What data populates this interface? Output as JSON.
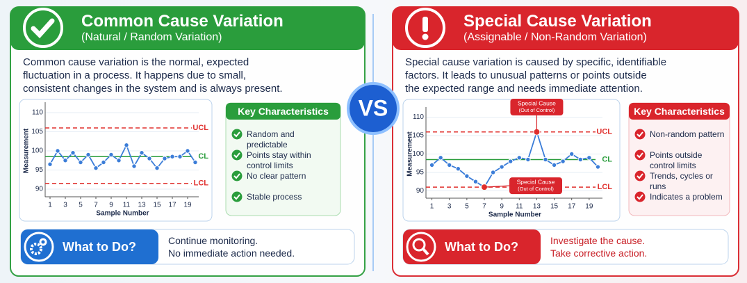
{
  "vs": "VS",
  "panels": [
    {
      "title": "Common Cause Variation",
      "subtitle": "(Natural / Random Variation)",
      "color": "#2a9d3c",
      "action_color": "#1f6fd1",
      "action_text_color": "#1c2a4a",
      "description": [
        "Common cause variation is the normal, expected",
        "fluctuation in a process. It happens due to small,",
        "consistent changes in the system and is always present."
      ],
      "chart": {
        "type": "line",
        "y_label": "Measurement",
        "x_label": "Sample Number",
        "line_color": "#3b7dd8",
        "x": [
          1,
          2,
          3,
          4,
          5,
          6,
          7,
          8,
          9,
          10,
          11,
          12,
          13,
          14,
          15,
          16,
          17,
          18,
          19,
          20
        ],
        "values": [
          96.5,
          100,
          97.5,
          99.5,
          97,
          99,
          95.5,
          97,
          99,
          97.5,
          101.5,
          96,
          99.5,
          98,
          95.5,
          98,
          98.5,
          98.5,
          100,
          97
        ],
        "point_colors": [
          "#3b7dd8",
          "#3b7dd8",
          "#3b7dd8",
          "#3b7dd8",
          "#3b7dd8",
          "#3b7dd8",
          "#3b7dd8",
          "#3b7dd8",
          "#3b7dd8",
          "#3b7dd8",
          "#3b7dd8",
          "#3b7dd8",
          "#3b7dd8",
          "#3b7dd8",
          "#3b7dd8",
          "#3b7dd8",
          "#3b7dd8",
          "#3b7dd8",
          "#3b7dd8",
          "#3b7dd8"
        ],
        "xlim": [
          0,
          21
        ],
        "xticks": [
          1,
          3,
          5,
          7,
          9,
          11,
          13,
          15,
          17,
          19
        ],
        "ylim": [
          88,
          112
        ],
        "yticks": [
          90,
          95,
          100,
          105,
          110
        ],
        "grid": true,
        "limits": [
          {
            "label": "UCL",
            "value": 106,
            "color": "#e0302e"
          },
          {
            "label": "CL",
            "value": 98.5,
            "color": "#2a9d3c"
          },
          {
            "label": "LCL",
            "value": 91.5,
            "color": "#e0302e"
          }
        ],
        "annotations": []
      },
      "key": {
        "title": "Key Characteristics",
        "items": [
          "Random and predictable",
          "Points stay within control limits",
          "No clear pattern",
          "Stable process"
        ]
      },
      "action": {
        "title": "What to Do?",
        "lines": [
          "Continue monitoring.",
          "No immediate action needed."
        ]
      }
    },
    {
      "title": "Special Cause Variation",
      "subtitle": "(Assignable / Non-Random Variation)",
      "color": "#d9252c",
      "action_color": "#d9252c",
      "action_text_color": "#c81e25",
      "description": [
        "Special cause variation is caused by specific, identifiable",
        "factors. It leads to unusual patterns or points outside",
        "the expected range and needs immediate attention."
      ],
      "chart": {
        "type": "line",
        "y_label": "Measurement",
        "x_label": "Sample Number",
        "line_color": "#3b7dd8",
        "x": [
          1,
          2,
          3,
          4,
          5,
          6,
          7,
          8,
          9,
          10,
          11,
          12,
          13,
          14,
          15,
          16,
          17,
          18,
          19,
          20
        ],
        "values": [
          97,
          99,
          97,
          96,
          94,
          92.5,
          91,
          95,
          96.5,
          98,
          99,
          98.5,
          106,
          98.5,
          97,
          98,
          100,
          98.5,
          99,
          96.5
        ],
        "point_colors": [
          "#3b7dd8",
          "#3b7dd8",
          "#3b7dd8",
          "#3b7dd8",
          "#3b7dd8",
          "#3b7dd8",
          "#e0302e",
          "#3b7dd8",
          "#3b7dd8",
          "#3b7dd8",
          "#3b7dd8",
          "#3b7dd8",
          "#e0302e",
          "#3b7dd8",
          "#3b7dd8",
          "#3b7dd8",
          "#3b7dd8",
          "#3b7dd8",
          "#3b7dd8",
          "#3b7dd8"
        ],
        "xlim": [
          0,
          21
        ],
        "xticks": [
          1,
          3,
          5,
          7,
          9,
          11,
          13,
          15,
          17,
          19
        ],
        "ylim": [
          88,
          112
        ],
        "yticks": [
          90,
          95,
          100,
          105,
          110
        ],
        "grid": true,
        "limits": [
          {
            "label": "UCL",
            "value": 106,
            "color": "#e0302e"
          },
          {
            "label": "CL",
            "value": 98.5,
            "color": "#2a9d3c"
          },
          {
            "label": "LCL",
            "value": 91,
            "color": "#e0302e"
          }
        ],
        "annotations": [
          [
            "Special Cause",
            "(Out of Control)"
          ],
          [
            "Special Cause",
            "(Out of Control)"
          ]
        ]
      },
      "key": {
        "title": "Key Characteristics",
        "items": [
          "Non-random pattern",
          "Points outside control limits",
          "Trends, cycles or runs",
          "Indicates a problem"
        ]
      },
      "action": {
        "title": "What to Do?",
        "lines": [
          "Investigate the cause.",
          "Take corrective action."
        ]
      }
    }
  ]
}
